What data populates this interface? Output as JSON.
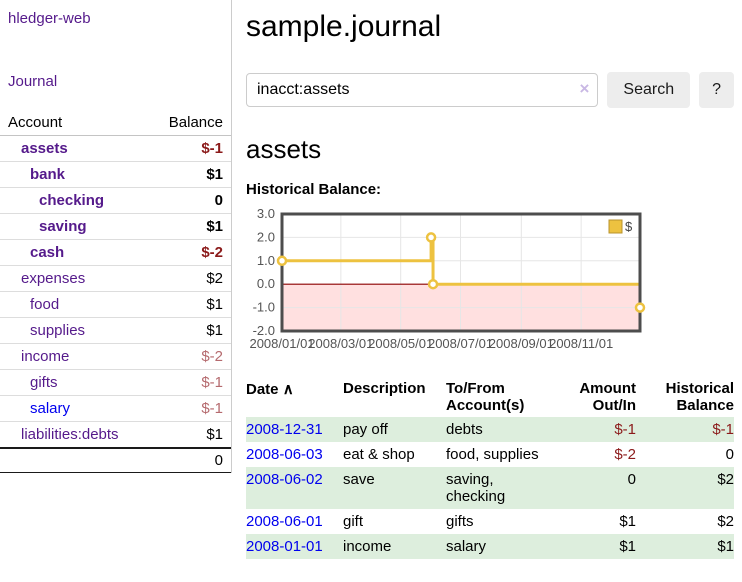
{
  "app": {
    "brand": "hledger-web",
    "nav_journal": "Journal"
  },
  "sidebar": {
    "header": {
      "account": "Account",
      "balance": "Balance"
    },
    "accounts": [
      {
        "name": "assets",
        "balance": "$-1",
        "depth": 1,
        "bold": true,
        "neg": "strong",
        "link": "purple"
      },
      {
        "name": "bank",
        "balance": "$1",
        "depth": 2,
        "bold": true,
        "neg": "none",
        "link": "purple"
      },
      {
        "name": "checking",
        "balance": "0",
        "depth": 3,
        "bold": true,
        "neg": "none",
        "link": "purple"
      },
      {
        "name": "saving",
        "balance": "$1",
        "depth": 3,
        "bold": true,
        "neg": "none",
        "link": "purple"
      },
      {
        "name": "cash",
        "balance": "$-2",
        "depth": 2,
        "bold": true,
        "neg": "strong",
        "link": "purple"
      },
      {
        "name": "expenses",
        "balance": "$2",
        "depth": 1,
        "bold": false,
        "neg": "none",
        "link": "purple"
      },
      {
        "name": "food",
        "balance": "$1",
        "depth": 2,
        "bold": false,
        "neg": "none",
        "link": "purple"
      },
      {
        "name": "supplies",
        "balance": "$1",
        "depth": 2,
        "bold": false,
        "neg": "none",
        "link": "purple"
      },
      {
        "name": "income",
        "balance": "$-2",
        "depth": 1,
        "bold": false,
        "neg": "muted",
        "link": "purple"
      },
      {
        "name": "gifts",
        "balance": "$-1",
        "depth": 2,
        "bold": false,
        "neg": "muted",
        "link": "purple"
      },
      {
        "name": "salary",
        "balance": "$-1",
        "depth": 2,
        "bold": false,
        "neg": "muted",
        "link": "blue"
      },
      {
        "name": "liabilities:debts",
        "balance": "$1",
        "depth": 1,
        "bold": false,
        "neg": "none",
        "link": "purple"
      }
    ],
    "total": "0"
  },
  "main": {
    "title": "sample.journal",
    "search": {
      "value": "inacct:assets",
      "clear_icon": "×",
      "button_label": "Search",
      "help_label": "?"
    },
    "account_heading": "assets"
  },
  "chart_data": {
    "type": "line",
    "step": true,
    "title": "Historical Balance:",
    "series": [
      {
        "name": "$",
        "points": [
          {
            "x": "2008-01-01",
            "y": 1
          },
          {
            "x": "2008-06-01",
            "y": 2
          },
          {
            "x": "2008-06-03",
            "y": 0
          },
          {
            "x": "2008-12-31",
            "y": -1
          }
        ]
      }
    ],
    "xrange": [
      "2008-01-01",
      "2008-12-31"
    ],
    "ylim": [
      -2,
      3
    ],
    "yticks": [
      "3.0",
      "2.0",
      "1.0",
      "0.0",
      "-1.0",
      "-2.0"
    ],
    "xticks": [
      {
        "label": "2008/01/01",
        "date": "2008-01-01"
      },
      {
        "label": "2008/03/01",
        "date": "2008-03-01"
      },
      {
        "label": "2008/05/01",
        "date": "2008-05-01"
      },
      {
        "label": "2008/07/01",
        "date": "2008-07-01"
      },
      {
        "label": "2008/09/01",
        "date": "2008-09-01"
      },
      {
        "label": "2008/11/01",
        "date": "2008-11-01"
      }
    ],
    "grid": true,
    "legend": {
      "position": "top-right",
      "entries": [
        {
          "label": "$",
          "color": "#edc240"
        }
      ]
    },
    "line_color": "#edc240",
    "point_fill": "#ffffff",
    "negative_region_fill": "rgba(255,0,0,0.12)",
    "zero_line_color": "#8b0000",
    "border_color": "#4d4d4d",
    "tick_label_color": "#545454"
  },
  "register": {
    "headers": {
      "date": "Date",
      "sort_icon": "∧",
      "description": "Description",
      "account_line1": "To/From",
      "account_line2": "Account(s)",
      "amount_line1": "Amount",
      "amount_line2": "Out/In",
      "balance_line1": "Historical",
      "balance_line2": "Balance"
    },
    "rows": [
      {
        "date": "2008-12-31",
        "description": "pay off",
        "accounts": "debts",
        "amount": "$-1",
        "amount_negative": true,
        "balance": "$-1",
        "balance_negative": true
      },
      {
        "date": "2008-06-03",
        "description": "eat & shop",
        "accounts": "food, supplies",
        "amount": "$-2",
        "amount_negative": true,
        "balance": "0",
        "balance_negative": false
      },
      {
        "date": "2008-06-02",
        "description": "save",
        "accounts": "saving, checking",
        "amount": "0",
        "amount_negative": false,
        "balance": "$2",
        "balance_negative": false
      },
      {
        "date": "2008-06-01",
        "description": "gift",
        "accounts": "gifts",
        "amount": "$1",
        "amount_negative": false,
        "balance": "$2",
        "balance_negative": false
      },
      {
        "date": "2008-01-01",
        "description": "income",
        "accounts": "salary",
        "amount": "$1",
        "amount_negative": false,
        "balance": "$1",
        "balance_negative": false
      }
    ]
  },
  "colors": {
    "link_purple": "#551a8b",
    "link_blue": "#0000ee",
    "negative_strong": "#8b1a1a",
    "negative_muted": "#b56a6e",
    "row_green": "#ddeedd",
    "chart_line_gold": "#edc240"
  }
}
